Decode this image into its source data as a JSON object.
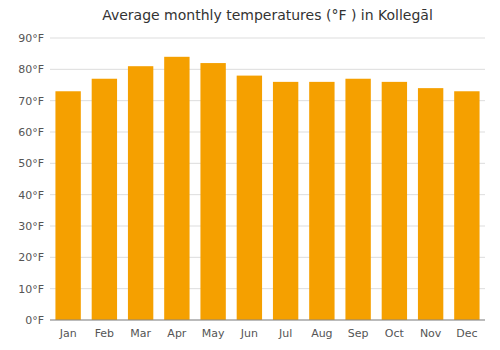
{
  "chart_data": {
    "type": "bar",
    "title": "Average monthly temperatures (°F ) in Kollegāl",
    "categories": [
      "Jan",
      "Feb",
      "Mar",
      "Apr",
      "May",
      "Jun",
      "Jul",
      "Aug",
      "Sep",
      "Oct",
      "Nov",
      "Dec"
    ],
    "values": [
      73,
      77,
      81,
      84,
      82,
      78,
      76,
      76,
      77,
      76,
      74,
      73
    ],
    "color": "#F5A000",
    "ylim": [
      0,
      90
    ],
    "yticks": [
      {
        "value": 0,
        "label": "0°F"
      },
      {
        "value": 10,
        "label": "10°F"
      },
      {
        "value": 20,
        "label": "20°F"
      },
      {
        "value": 30,
        "label": "30°F"
      },
      {
        "value": 40,
        "label": "40°F"
      },
      {
        "value": 50,
        "label": "50°F"
      },
      {
        "value": 60,
        "label": "60°F"
      },
      {
        "value": 70,
        "label": "70°F"
      },
      {
        "value": 80,
        "label": "80°F"
      },
      {
        "value": 90,
        "label": "90°F"
      }
    ],
    "grid": true
  }
}
